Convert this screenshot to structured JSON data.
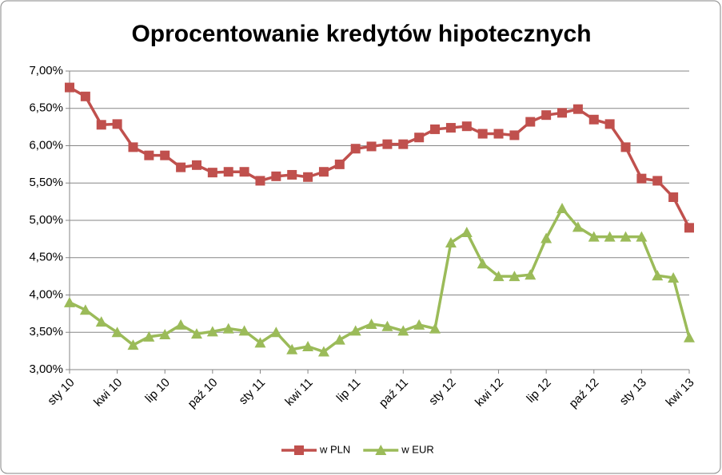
{
  "chart_data": {
    "type": "line",
    "title": "Oprocentowanie kredytów hipotecznych",
    "categories": [
      "sty 10",
      null,
      null,
      "kwi 10",
      null,
      null,
      "lip 10",
      null,
      null,
      "paź 10",
      null,
      null,
      "sty 11",
      null,
      null,
      "kwi 11",
      null,
      null,
      "lip 11",
      null,
      null,
      "paź 11",
      null,
      null,
      "sty 12",
      null,
      null,
      "kwi 12",
      null,
      null,
      "lip 12",
      null,
      null,
      "paź 12",
      null,
      null,
      "sty 13",
      null,
      null,
      "kwi 13"
    ],
    "series": [
      {
        "name": "w PLN",
        "color": "#c0504d",
        "marker": "square",
        "values": [
          6.78,
          6.66,
          6.28,
          6.29,
          5.98,
          5.87,
          5.87,
          5.71,
          5.74,
          5.64,
          5.65,
          5.65,
          5.53,
          5.59,
          5.61,
          5.58,
          5.65,
          5.75,
          5.96,
          5.99,
          6.02,
          6.02,
          6.11,
          6.22,
          6.24,
          6.26,
          6.16,
          6.16,
          6.14,
          6.32,
          6.41,
          6.44,
          6.49,
          6.35,
          6.29,
          5.98,
          5.56,
          5.53,
          5.31,
          4.9
        ]
      },
      {
        "name": "w EUR",
        "color": "#9bbb59",
        "marker": "triangle",
        "values": [
          3.9,
          3.8,
          3.64,
          3.5,
          3.33,
          3.44,
          3.47,
          3.6,
          3.48,
          3.51,
          3.55,
          3.52,
          3.36,
          3.5,
          3.27,
          3.31,
          3.24,
          3.4,
          3.52,
          3.61,
          3.58,
          3.52,
          3.6,
          3.55,
          4.7,
          4.84,
          4.42,
          4.25,
          4.25,
          4.27,
          4.76,
          5.16,
          4.91,
          4.78,
          4.78,
          4.78,
          4.78,
          4.26,
          4.23,
          3.43
        ]
      }
    ],
    "ylim": [
      3,
      7
    ],
    "yticks": [
      {
        "value": 3,
        "label": "3,00%"
      },
      {
        "value": 3.5,
        "label": "3,50%"
      },
      {
        "value": 4,
        "label": "4,00%"
      },
      {
        "value": 4.5,
        "label": "4,50%"
      },
      {
        "value": 5,
        "label": "5,00%"
      },
      {
        "value": 5.5,
        "label": "5,50%"
      },
      {
        "value": 6,
        "label": "6,00%"
      },
      {
        "value": 6.5,
        "label": "6,50%"
      },
      {
        "value": 7,
        "label": "7,00%"
      }
    ],
    "grid": true,
    "legend": "bottom"
  }
}
